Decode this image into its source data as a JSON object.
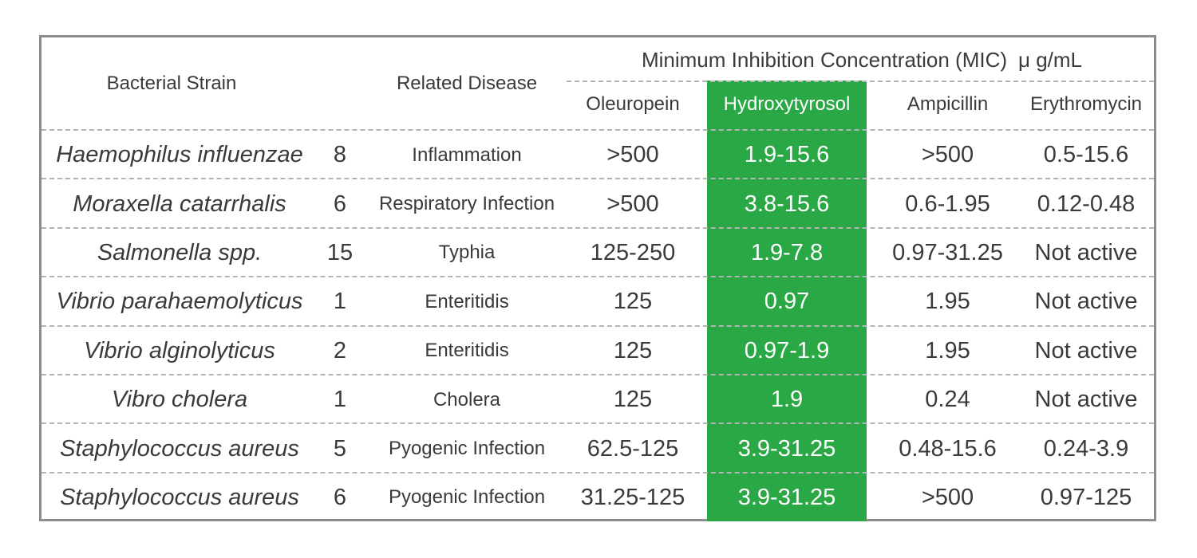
{
  "table": {
    "header": {
      "strain": "Bacterial Strain",
      "disease": "Related Disease",
      "mic_group": "Minimum Inhibition Concentration (MIC)",
      "mic_unit": "μ g/mL",
      "compounds": [
        "Oleuropein",
        "Hydroxytyrosol",
        "Ampicillin",
        "Erythromycin"
      ]
    },
    "highlight_color": "#2aa846",
    "rows": [
      {
        "strain": "Haemophilus influenzae",
        "count": "8",
        "disease": "Inflammation",
        "oleuropein": ">500",
        "hydroxytyrosol": "1.9-15.6",
        "ampicillin": ">500",
        "erythromycin": "0.5-15.6"
      },
      {
        "strain": "Moraxella catarrhalis",
        "count": "6",
        "disease": "Respiratory Infection",
        "oleuropein": ">500",
        "hydroxytyrosol": "3.8-15.6",
        "ampicillin": "0.6-1.95",
        "erythromycin": "0.12-0.48"
      },
      {
        "strain": "Salmonella spp.",
        "count": "15",
        "disease": "Typhia",
        "oleuropein": "125-250",
        "hydroxytyrosol": "1.9-7.8",
        "ampicillin": "0.97-31.25",
        "erythromycin": "Not active"
      },
      {
        "strain": "Vibrio parahaemolyticus",
        "count": "1",
        "disease": "Enteritidis",
        "oleuropein": "125",
        "hydroxytyrosol": "0.97",
        "ampicillin": "1.95",
        "erythromycin": "Not active"
      },
      {
        "strain": "Vibrio alginolyticus",
        "count": "2",
        "disease": "Enteritidis",
        "oleuropein": "125",
        "hydroxytyrosol": "0.97-1.9",
        "ampicillin": "1.95",
        "erythromycin": "Not active"
      },
      {
        "strain": "Vibro cholera",
        "count": "1",
        "disease": "Cholera",
        "oleuropein": "125",
        "hydroxytyrosol": "1.9",
        "ampicillin": "0.24",
        "erythromycin": "Not active"
      },
      {
        "strain": "Staphylococcus aureus",
        "count": "5",
        "disease": "Pyogenic Infection",
        "oleuropein": "62.5-125",
        "hydroxytyrosol": "3.9-31.25",
        "ampicillin": "0.48-15.6",
        "erythromycin": "0.24-3.9"
      },
      {
        "strain": "Staphylococcus aureus",
        "count": "6",
        "disease": "Pyogenic Infection",
        "oleuropein": "31.25-125",
        "hydroxytyrosol": "3.9-31.25",
        "ampicillin": ">500",
        "erythromycin": "0.97-125"
      }
    ]
  }
}
